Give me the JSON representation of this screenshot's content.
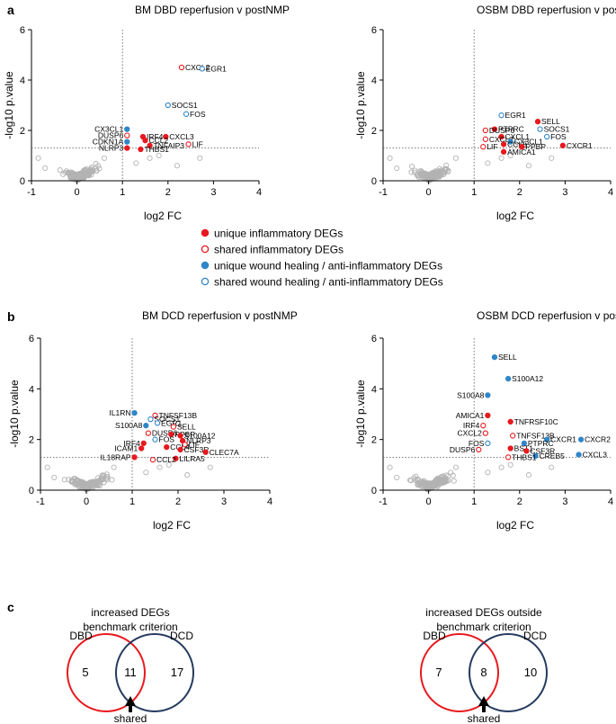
{
  "panel_letters": [
    "a",
    "b",
    "c"
  ],
  "colors": {
    "inflammatory": "#e8191e",
    "wound": "#2f86c8",
    "background": "#b3b3b3",
    "dbd_circle": "#e8191e",
    "dcd_circle": "#253a5e"
  },
  "legend": [
    {
      "label": "unique inflammatory DEGs",
      "color": "#e8191e",
      "filled": true
    },
    {
      "label": "shared inflammatory DEGs",
      "color": "#e8191e",
      "filled": false
    },
    {
      "label": "unique wound healing / anti-inflammatory DEGs",
      "color": "#2f86c8",
      "filled": true
    },
    {
      "label": "shared wound healing / anti-inflammatory DEGs",
      "color": "#2f86c8",
      "filled": false
    }
  ],
  "chart_data": [
    {
      "type": "scatter",
      "title": "BM DBD reperfusion v postNMP",
      "xlabel": "log2 FC",
      "ylabel": "-log10 p.value",
      "xlim": [
        -1,
        4
      ],
      "ylim": [
        0,
        6
      ],
      "xticks": [
        "-1",
        "0",
        "1",
        "2",
        "3",
        "4"
      ],
      "yticks": [
        "0",
        "2",
        "4",
        "6"
      ],
      "threshold_x": 1,
      "threshold_y": 1.3,
      "points": [
        {
          "label": "CXCL2",
          "x": 2.3,
          "y": 4.5,
          "cat": "shared-inflammatory"
        },
        {
          "label": "EGR1",
          "x": 2.75,
          "y": 4.45,
          "cat": "shared-wound"
        },
        {
          "label": "SOCS1",
          "x": 2.0,
          "y": 3.0,
          "cat": "shared-wound"
        },
        {
          "label": "FOS",
          "x": 2.4,
          "y": 2.65,
          "cat": "shared-wound"
        },
        {
          "label": "IRF4",
          "x": 1.45,
          "y": 1.75,
          "cat": "unique-inflammatory"
        },
        {
          "label": "CXCL3",
          "x": 1.95,
          "y": 1.75,
          "cat": "unique-inflammatory"
        },
        {
          "label": "CCL2",
          "x": 1.5,
          "y": 1.6,
          "cat": "unique-inflammatory"
        },
        {
          "label": "LIF",
          "x": 2.45,
          "y": 1.45,
          "cat": "shared-inflammatory"
        },
        {
          "label": "TNFAIP3",
          "x": 1.6,
          "y": 1.4,
          "cat": "unique-inflammatory"
        },
        {
          "label": "THBS1",
          "x": 1.4,
          "y": 1.25,
          "cat": "unique-inflammatory"
        },
        {
          "label": "CX3CL1",
          "x": 1.1,
          "y": 2.05,
          "cat": "unique-wound"
        },
        {
          "label": "DUSP6",
          "x": 1.1,
          "y": 1.8,
          "cat": "shared-inflammatory"
        },
        {
          "label": "CDKN1A",
          "x": 1.1,
          "y": 1.55,
          "cat": "unique-wound"
        },
        {
          "label": "NLRP3",
          "x": 1.1,
          "y": 1.3,
          "cat": "unique-inflammatory"
        }
      ]
    },
    {
      "type": "scatter",
      "title": "OSBM DBD reperfusion v postNMP",
      "xlabel": "log2 FC",
      "ylabel": "-log10 p.value",
      "xlim": [
        -1,
        4
      ],
      "ylim": [
        0,
        6
      ],
      "xticks": [
        "-1",
        "0",
        "1",
        "2",
        "3",
        "4"
      ],
      "yticks": [
        "0",
        "2",
        "4",
        "6"
      ],
      "threshold_x": 1,
      "threshold_y": 1.3,
      "points": [
        {
          "label": "EGR1",
          "x": 1.6,
          "y": 2.6,
          "cat": "shared-wound"
        },
        {
          "label": "SELL",
          "x": 2.4,
          "y": 2.35,
          "cat": "unique-inflammatory"
        },
        {
          "label": "SOCS1",
          "x": 2.45,
          "y": 2.05,
          "cat": "shared-wound"
        },
        {
          "label": "PTPRC",
          "x": 1.45,
          "y": 2.05,
          "cat": "unique-inflammatory"
        },
        {
          "label": "DUSP6",
          "x": 1.25,
          "y": 2.0,
          "cat": "shared-inflammatory"
        },
        {
          "label": "FOS",
          "x": 2.6,
          "y": 1.75,
          "cat": "shared-wound"
        },
        {
          "label": "CXCL1",
          "x": 1.6,
          "y": 1.75,
          "cat": "unique-inflammatory"
        },
        {
          "label": "CXCL2",
          "x": 1.25,
          "y": 1.65,
          "cat": "shared-inflammatory"
        },
        {
          "label": "CX3CL1",
          "x": 1.8,
          "y": 1.55,
          "cat": "unique-wound"
        },
        {
          "label": "CCL5",
          "x": 1.65,
          "y": 1.45,
          "cat": "unique-inflammatory"
        },
        {
          "label": "LIF",
          "x": 1.2,
          "y": 1.35,
          "cat": "shared-inflammatory"
        },
        {
          "label": "PPBP",
          "x": 2.05,
          "y": 1.35,
          "cat": "unique-inflammatory"
        },
        {
          "label": "AMICA1",
          "x": 1.65,
          "y": 1.15,
          "cat": "unique-inflammatory"
        },
        {
          "label": "CXCR1",
          "x": 2.95,
          "y": 1.4,
          "cat": "unique-inflammatory"
        }
      ]
    },
    {
      "type": "scatter",
      "title": "BM DCD reperfusion v postNMP",
      "xlabel": "log2 FC",
      "ylabel": "-log10 p.value",
      "xlim": [
        -1,
        4
      ],
      "ylim": [
        0,
        6
      ],
      "xticks": [
        "-1",
        "0",
        "1",
        "2",
        "3",
        "4"
      ],
      "yticks": [
        "0",
        "2",
        "4",
        "6"
      ],
      "threshold_x": 1,
      "threshold_y": 1.3,
      "points": [
        {
          "label": "IL1RN",
          "x": 1.05,
          "y": 3.05,
          "cat": "unique-wound"
        },
        {
          "label": "TNFSF13B",
          "x": 1.5,
          "y": 2.95,
          "cat": "shared-inflammatory"
        },
        {
          "label": "SOCS1",
          "x": 1.4,
          "y": 2.8,
          "cat": "shared-wound"
        },
        {
          "label": "EGR1",
          "x": 1.55,
          "y": 2.65,
          "cat": "shared-wound"
        },
        {
          "label": "S100A8",
          "x": 1.3,
          "y": 2.55,
          "cat": "unique-wound"
        },
        {
          "label": "SELL",
          "x": 1.9,
          "y": 2.5,
          "cat": "shared-inflammatory"
        },
        {
          "label": "DUSP6",
          "x": 1.35,
          "y": 2.25,
          "cat": "shared-inflammatory"
        },
        {
          "label": "PPBP",
          "x": 1.85,
          "y": 2.2,
          "cat": "unique-inflammatory"
        },
        {
          "label": "S100A12",
          "x": 2.05,
          "y": 2.15,
          "cat": "unique-inflammatory"
        },
        {
          "label": "FOS",
          "x": 1.5,
          "y": 2.0,
          "cat": "shared-wound"
        },
        {
          "label": "NLRP3",
          "x": 2.1,
          "y": 1.95,
          "cat": "unique-inflammatory"
        },
        {
          "label": "IRF4",
          "x": 1.25,
          "y": 1.85,
          "cat": "unique-inflammatory"
        },
        {
          "label": "LIF",
          "x": 2.15,
          "y": 1.8,
          "cat": "shared-inflammatory"
        },
        {
          "label": "ICAM1",
          "x": 1.2,
          "y": 1.65,
          "cat": "unique-inflammatory"
        },
        {
          "label": "CCL4",
          "x": 1.75,
          "y": 1.7,
          "cat": "unique-inflammatory"
        },
        {
          "label": "CSF3R",
          "x": 2.05,
          "y": 1.6,
          "cat": "unique-inflammatory"
        },
        {
          "label": "CLEC7A",
          "x": 2.6,
          "y": 1.5,
          "cat": "unique-inflammatory"
        },
        {
          "label": "IL18RAP",
          "x": 1.05,
          "y": 1.3,
          "cat": "unique-inflammatory"
        },
        {
          "label": "LILRA5",
          "x": 1.95,
          "y": 1.25,
          "cat": "unique-inflammatory"
        },
        {
          "label": "CCL2",
          "x": 1.45,
          "y": 1.2,
          "cat": "shared-inflammatory"
        }
      ]
    },
    {
      "type": "scatter",
      "title": "OSBM DCD reperfusion v postNMP",
      "xlabel": "log2 FC",
      "ylabel": "-log10 p.value",
      "xlim": [
        -1,
        4
      ],
      "ylim": [
        0,
        6
      ],
      "xticks": [
        "-1",
        "0",
        "1",
        "2",
        "3",
        "4"
      ],
      "yticks": [
        "0",
        "2",
        "4",
        "6"
      ],
      "threshold_x": 1,
      "threshold_y": 1.3,
      "points": [
        {
          "label": "SELL",
          "x": 1.45,
          "y": 5.25,
          "cat": "unique-wound"
        },
        {
          "label": "S100A12",
          "x": 1.75,
          "y": 4.4,
          "cat": "unique-wound"
        },
        {
          "label": "S100A8",
          "x": 1.3,
          "y": 3.75,
          "cat": "unique-wound"
        },
        {
          "label": "AMICA1",
          "x": 1.3,
          "y": 2.95,
          "cat": "unique-inflammatory"
        },
        {
          "label": "TNFRSF10C",
          "x": 1.8,
          "y": 2.7,
          "cat": "unique-inflammatory"
        },
        {
          "label": "IRF4",
          "x": 1.2,
          "y": 2.55,
          "cat": "shared-inflammatory"
        },
        {
          "label": "CXCL2",
          "x": 1.25,
          "y": 2.25,
          "cat": "shared-inflammatory"
        },
        {
          "label": "TNFSF13B",
          "x": 1.85,
          "y": 2.15,
          "cat": "shared-inflammatory"
        },
        {
          "label": "CXCR1",
          "x": 2.6,
          "y": 2.0,
          "cat": "unique-wound"
        },
        {
          "label": "CXCR2",
          "x": 3.35,
          "y": 2.0,
          "cat": "unique-wound"
        },
        {
          "label": "PTPRC",
          "x": 2.1,
          "y": 1.85,
          "cat": "unique-wound"
        },
        {
          "label": "FOS",
          "x": 1.3,
          "y": 1.85,
          "cat": "shared-wound"
        },
        {
          "label": "BST1",
          "x": 1.8,
          "y": 1.65,
          "cat": "unique-inflammatory"
        },
        {
          "label": "CSF3R",
          "x": 2.15,
          "y": 1.55,
          "cat": "unique-inflammatory"
        },
        {
          "label": "DUSP6",
          "x": 1.1,
          "y": 1.6,
          "cat": "shared-inflammatory"
        },
        {
          "label": "CREB5",
          "x": 2.35,
          "y": 1.35,
          "cat": "unique-wound"
        },
        {
          "label": "CXCL3",
          "x": 3.3,
          "y": 1.4,
          "cat": "unique-wound"
        },
        {
          "label": "THBS1",
          "x": 1.75,
          "y": 1.3,
          "cat": "shared-inflammatory"
        }
      ]
    }
  ],
  "venns": [
    {
      "title_lines": [
        "increased DEGs",
        "benchmark criterion"
      ],
      "left_label": "DBD",
      "right_label": "DCD",
      "left_count": "5",
      "shared_count": "11",
      "right_count": "17",
      "shared_label": "shared"
    },
    {
      "title_lines": [
        "increased DEGs outside",
        "benchmark criterion"
      ],
      "left_label": "DBD",
      "right_label": "DCD",
      "left_count": "7",
      "shared_count": "8",
      "right_count": "10",
      "shared_label": "shared"
    }
  ]
}
